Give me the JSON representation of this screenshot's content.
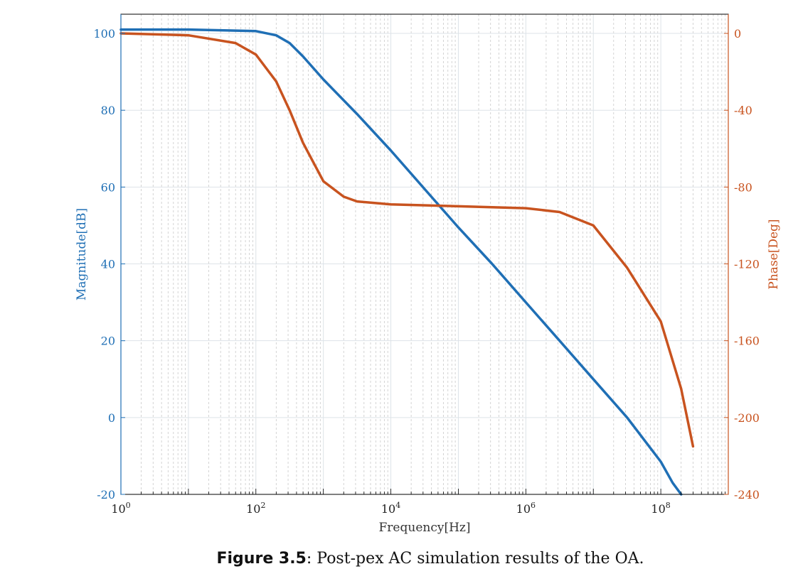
{
  "chart_data": {
    "type": "line",
    "xlabel": "Frequency[Hz]",
    "xscale": "log",
    "xlim": [
      1,
      1000000000
    ],
    "x_ticks": [
      {
        "value": 1,
        "base": "10",
        "exp": "0"
      },
      {
        "value": 100,
        "base": "10",
        "exp": "2"
      },
      {
        "value": 10000,
        "base": "10",
        "exp": "4"
      },
      {
        "value": 1000000,
        "base": "10",
        "exp": "6"
      },
      {
        "value": 100000000,
        "base": "10",
        "exp": "8"
      }
    ],
    "y_left": {
      "label": "Magnitude[dB]",
      "lim": [
        -20,
        105
      ],
      "ticks": [
        -20,
        0,
        20,
        40,
        60,
        80,
        100
      ],
      "color": "#1f6fb5"
    },
    "y_right": {
      "label": "Phase[Deg]",
      "lim": [
        -240,
        10
      ],
      "ticks": [
        -240,
        -200,
        -160,
        -120,
        -80,
        -40,
        0
      ],
      "color": "#c8531f"
    },
    "grid": true,
    "series": [
      {
        "axis": "left",
        "color": "#1f6fb5",
        "x": [
          1,
          10,
          100,
          200,
          316,
          500,
          1000,
          3162,
          10000,
          31623,
          100000,
          316228,
          1000000,
          3162278,
          10000000,
          31623000,
          100000000,
          150000000,
          200000000
        ],
        "y": [
          101,
          101,
          100.6,
          99.5,
          97.5,
          94,
          88,
          79,
          69.5,
          59.5,
          49.5,
          40,
          30,
          20,
          10,
          0,
          -11.5,
          -17,
          -20
        ]
      },
      {
        "axis": "right",
        "color": "#c8531f",
        "x": [
          1,
          10,
          50,
          100,
          200,
          316,
          500,
          1000,
          2000,
          3162,
          10000,
          100000,
          1000000,
          3162278,
          10000000,
          31623000,
          100000000,
          200000000,
          300000000
        ],
        "y": [
          0,
          -1,
          -5,
          -11,
          -25,
          -40,
          -57,
          -77,
          -85,
          -87.5,
          -89,
          -90,
          -91,
          -93,
          -100,
          -122,
          -150,
          -185,
          -215
        ]
      }
    ]
  },
  "caption": {
    "label": "Figure 3.5",
    "text": ": Post-pex AC simulation results of the OA."
  }
}
